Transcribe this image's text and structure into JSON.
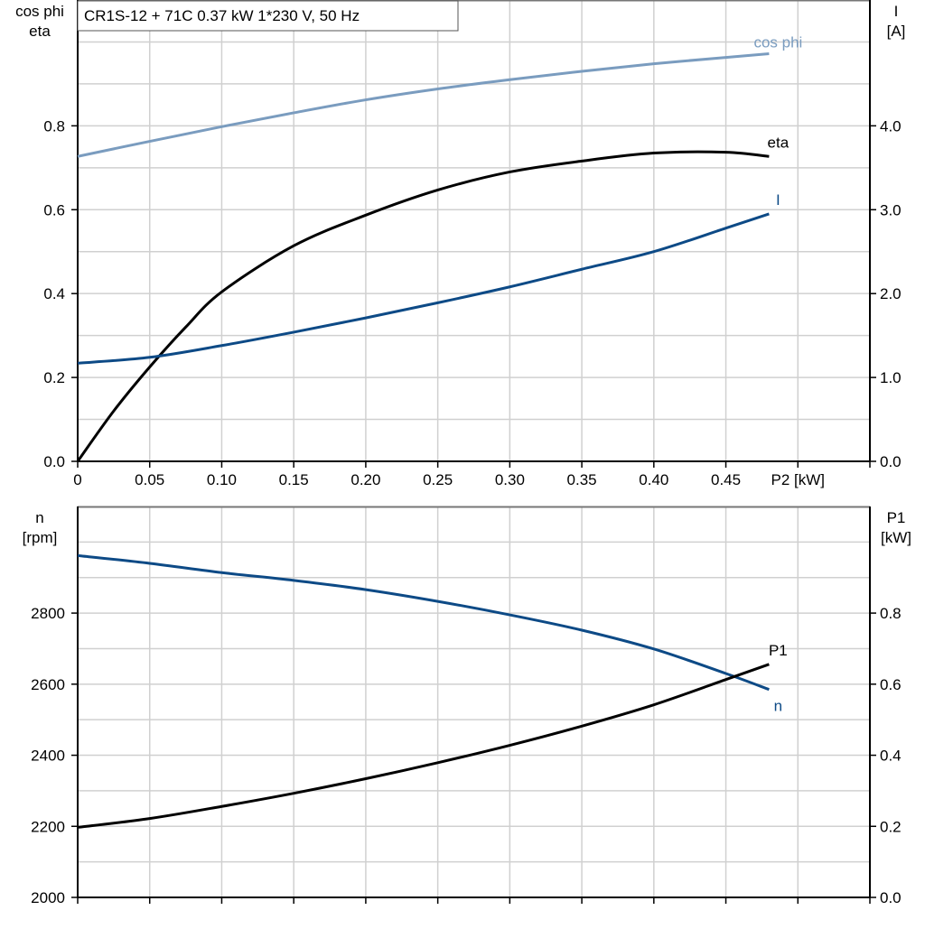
{
  "chart_data": [
    {
      "type": "line",
      "title": "CR1S-12 + 71C   0.37 kW   1*230 V, 50 Hz",
      "xlabel": "P2 [kW]",
      "ylabel_left": [
        "cos phi",
        "eta"
      ],
      "ylabel_right": [
        "I",
        "[A]"
      ],
      "xlim": [
        0,
        0.55
      ],
      "ylim_left": [
        0,
        1.1
      ],
      "ylim_right": [
        0,
        5.5
      ],
      "grid": true,
      "x_ticks": [
        "0",
        "0.05",
        "0.10",
        "0.15",
        "0.20",
        "0.25",
        "0.30",
        "0.35",
        "0.40",
        "0.45"
      ],
      "y_ticks_left": [
        "0.0",
        "0.2",
        "0.4",
        "0.6",
        "0.8"
      ],
      "y_ticks_right": [
        "0.0",
        "1.0",
        "2.0",
        "3.0",
        "4.0"
      ],
      "series": [
        {
          "name": "cos phi",
          "axis": "left",
          "color": "#7a9cbf",
          "x": [
            0,
            0.05,
            0.1,
            0.15,
            0.2,
            0.25,
            0.3,
            0.35,
            0.4,
            0.45,
            0.48
          ],
          "y": [
            0.727,
            0.763,
            0.798,
            0.831,
            0.862,
            0.888,
            0.91,
            0.93,
            0.948,
            0.963,
            0.972
          ]
        },
        {
          "name": "eta",
          "axis": "left",
          "color": "#000000",
          "x": [
            0,
            0.025,
            0.05,
            0.075,
            0.1,
            0.15,
            0.2,
            0.25,
            0.3,
            0.35,
            0.4,
            0.45,
            0.48
          ],
          "y": [
            0,
            0.12,
            0.225,
            0.32,
            0.404,
            0.514,
            0.587,
            0.647,
            0.69,
            0.716,
            0.735,
            0.737,
            0.727
          ]
        },
        {
          "name": "I",
          "axis": "right",
          "color": "#0d4a86",
          "x": [
            0,
            0.05,
            0.1,
            0.15,
            0.2,
            0.25,
            0.3,
            0.35,
            0.4,
            0.45,
            0.48
          ],
          "y": [
            1.17,
            1.24,
            1.38,
            1.54,
            1.71,
            1.89,
            2.08,
            2.29,
            2.5,
            2.78,
            2.95
          ]
        }
      ]
    },
    {
      "type": "line",
      "ylabel_left": [
        "n",
        "[rpm]"
      ],
      "ylabel_right": [
        "P1",
        "[kW]"
      ],
      "xlim": [
        0,
        0.55
      ],
      "ylim_left": [
        2000,
        3100
      ],
      "ylim_right": [
        0,
        1.1
      ],
      "grid": true,
      "y_ticks_left": [
        "2000",
        "2200",
        "2400",
        "2600",
        "2800"
      ],
      "y_ticks_right": [
        "0.0",
        "0.2",
        "0.4",
        "0.6",
        "0.8"
      ],
      "series": [
        {
          "name": "n",
          "axis": "left",
          "color": "#0d4a86",
          "x": [
            0,
            0.05,
            0.1,
            0.15,
            0.2,
            0.25,
            0.3,
            0.35,
            0.4,
            0.45,
            0.48
          ],
          "y": [
            2962,
            2940,
            2914,
            2892,
            2866,
            2833,
            2795,
            2752,
            2699,
            2630,
            2585
          ]
        },
        {
          "name": "P1",
          "axis": "right",
          "color": "#000000",
          "x": [
            0,
            0.05,
            0.1,
            0.15,
            0.2,
            0.25,
            0.3,
            0.35,
            0.4,
            0.45,
            0.48
          ],
          "y": [
            0.197,
            0.222,
            0.256,
            0.293,
            0.334,
            0.379,
            0.428,
            0.482,
            0.542,
            0.613,
            0.656
          ]
        }
      ]
    }
  ]
}
